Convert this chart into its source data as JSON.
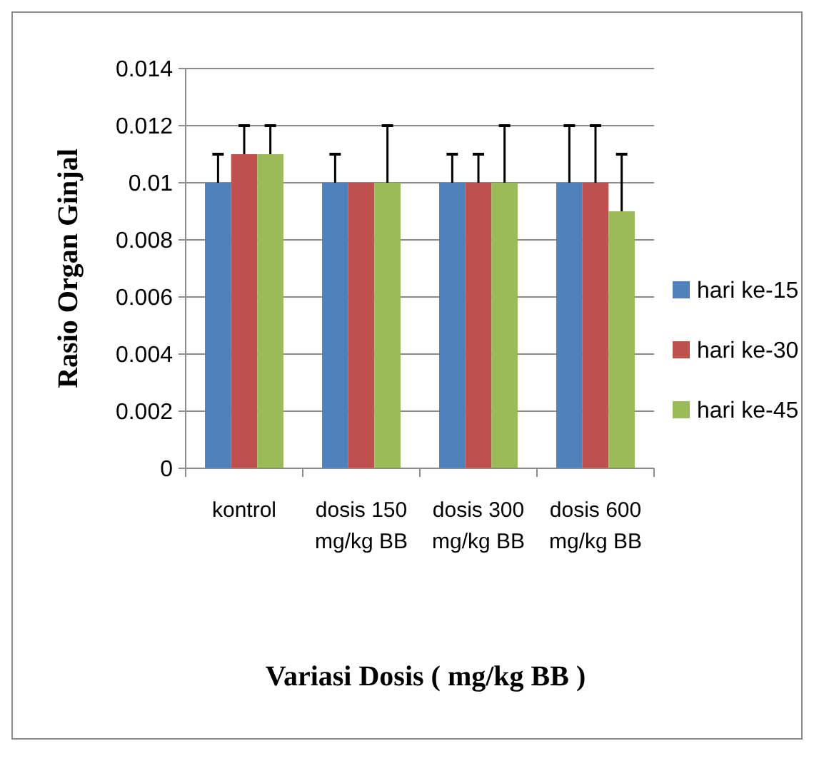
{
  "chart_data": {
    "type": "bar",
    "xlabel": "Variasi Dosis ( mg/kg BB )",
    "ylabel": "Rasio Organ Ginjal",
    "categories": [
      "kontrol",
      "dosis 150 mg/kg BB",
      "dosis 300 mg/kg BB",
      "dosis 600 mg/kg BB"
    ],
    "series": [
      {
        "name": "hari ke-15",
        "color": "#4f81bd",
        "values": [
          0.01,
          0.01,
          0.01,
          0.01
        ],
        "errors": [
          [
            0.01,
            0.011
          ],
          [
            0.01,
            0.011
          ],
          [
            0.01,
            0.011
          ],
          [
            0.01,
            0.012
          ]
        ]
      },
      {
        "name": "hari ke-30",
        "color": "#c0504d",
        "values": [
          0.011,
          0.01,
          0.01,
          0.01
        ],
        "errors": [
          [
            0.011,
            0.012
          ],
          null,
          [
            0.01,
            0.011
          ],
          [
            0.01,
            0.012
          ]
        ]
      },
      {
        "name": "hari ke-45",
        "color": "#9bbb59",
        "values": [
          0.011,
          0.01,
          0.01,
          0.009
        ],
        "errors": [
          [
            0.011,
            0.012
          ],
          [
            0.01,
            0.012
          ],
          [
            0.01,
            0.012
          ],
          [
            0.009,
            0.011
          ]
        ]
      }
    ],
    "ylim": [
      0,
      0.014
    ],
    "yticks": [
      0,
      0.002,
      0.004,
      0.006,
      0.008,
      0.01,
      0.012,
      0.014
    ],
    "grid": "y",
    "legend": "right"
  }
}
